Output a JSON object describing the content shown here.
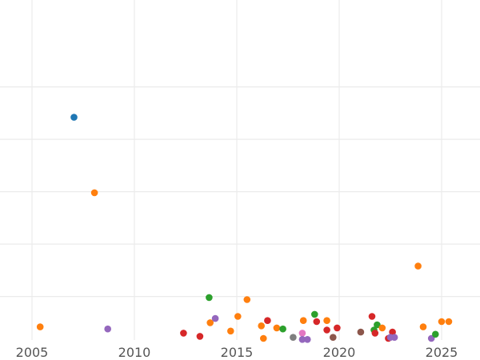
{
  "chart_data": {
    "type": "scatter",
    "title": "",
    "xlabel": "",
    "ylabel": "",
    "xlim": [
      2004.5,
      2027.0
    ],
    "ylim": [
      -0.5,
      13.5
    ],
    "grid": true,
    "legend": "none",
    "x_ticks": [
      2005,
      2010,
      2015,
      2020,
      2025
    ],
    "x_tick_labels": [
      "2005",
      "2010",
      "2015",
      "2020",
      "2025"
    ],
    "y_gridlines": [
      2.0,
      4.5,
      7.0,
      9.5,
      12.0
    ],
    "colors": {
      "blue": "#1f77b4",
      "orange": "#ff7f0e",
      "green": "#2ca02c",
      "red": "#d62728",
      "purple": "#9467bd",
      "brown": "#8c564b",
      "pink": "#e377c2",
      "gray": "#7f7f7f"
    },
    "points": [
      {
        "x": 2007.05,
        "y": 10.55,
        "color": "blue"
      },
      {
        "x": 2008.05,
        "y": 6.95,
        "color": "orange"
      },
      {
        "x": 2023.85,
        "y": 3.45,
        "color": "orange"
      },
      {
        "x": 2005.4,
        "y": 0.55,
        "color": "orange"
      },
      {
        "x": 2008.7,
        "y": 0.45,
        "color": "purple"
      },
      {
        "x": 2012.4,
        "y": 0.25,
        "color": "red"
      },
      {
        "x": 2013.2,
        "y": 0.1,
        "color": "red"
      },
      {
        "x": 2013.65,
        "y": 1.95,
        "color": "green"
      },
      {
        "x": 2013.7,
        "y": 0.75,
        "color": "orange"
      },
      {
        "x": 2013.95,
        "y": 0.95,
        "color": "purple"
      },
      {
        "x": 2014.7,
        "y": 0.35,
        "color": "orange"
      },
      {
        "x": 2015.05,
        "y": 1.05,
        "color": "orange"
      },
      {
        "x": 2015.5,
        "y": 1.85,
        "color": "orange"
      },
      {
        "x": 2016.2,
        "y": 0.6,
        "color": "orange"
      },
      {
        "x": 2016.3,
        "y": 0.0,
        "color": "orange"
      },
      {
        "x": 2016.5,
        "y": 0.85,
        "color": "red"
      },
      {
        "x": 2016.95,
        "y": 0.5,
        "color": "orange"
      },
      {
        "x": 2017.25,
        "y": 0.45,
        "color": "green"
      },
      {
        "x": 2017.75,
        "y": 0.05,
        "color": "gray"
      },
      {
        "x": 2018.2,
        "y": 0.25,
        "color": "pink"
      },
      {
        "x": 2018.25,
        "y": 0.85,
        "color": "orange"
      },
      {
        "x": 2018.2,
        "y": -0.05,
        "color": "purple"
      },
      {
        "x": 2018.45,
        "y": -0.05,
        "color": "purple"
      },
      {
        "x": 2018.8,
        "y": 1.15,
        "color": "green"
      },
      {
        "x": 2018.9,
        "y": 0.8,
        "color": "red"
      },
      {
        "x": 2019.4,
        "y": 0.85,
        "color": "orange"
      },
      {
        "x": 2019.4,
        "y": 0.4,
        "color": "red"
      },
      {
        "x": 2019.7,
        "y": 0.05,
        "color": "brown"
      },
      {
        "x": 2019.9,
        "y": 0.5,
        "color": "red"
      },
      {
        "x": 2021.05,
        "y": 0.3,
        "color": "brown"
      },
      {
        "x": 2021.6,
        "y": 1.05,
        "color": "red"
      },
      {
        "x": 2021.7,
        "y": 0.4,
        "color": "green"
      },
      {
        "x": 2021.75,
        "y": 0.25,
        "color": "red"
      },
      {
        "x": 2021.85,
        "y": 0.65,
        "color": "green"
      },
      {
        "x": 2022.1,
        "y": 0.5,
        "color": "orange"
      },
      {
        "x": 2022.4,
        "y": 0.0,
        "color": "red"
      },
      {
        "x": 2022.6,
        "y": 0.3,
        "color": "red"
      },
      {
        "x": 2022.5,
        "y": 0.05,
        "color": "purple"
      },
      {
        "x": 2022.7,
        "y": 0.05,
        "color": "purple"
      },
      {
        "x": 2024.1,
        "y": 0.55,
        "color": "orange"
      },
      {
        "x": 2024.5,
        "y": 0.0,
        "color": "purple"
      },
      {
        "x": 2024.7,
        "y": 0.2,
        "color": "green"
      },
      {
        "x": 2025.0,
        "y": 0.8,
        "color": "orange"
      },
      {
        "x": 2025.35,
        "y": 0.8,
        "color": "orange"
      }
    ]
  }
}
